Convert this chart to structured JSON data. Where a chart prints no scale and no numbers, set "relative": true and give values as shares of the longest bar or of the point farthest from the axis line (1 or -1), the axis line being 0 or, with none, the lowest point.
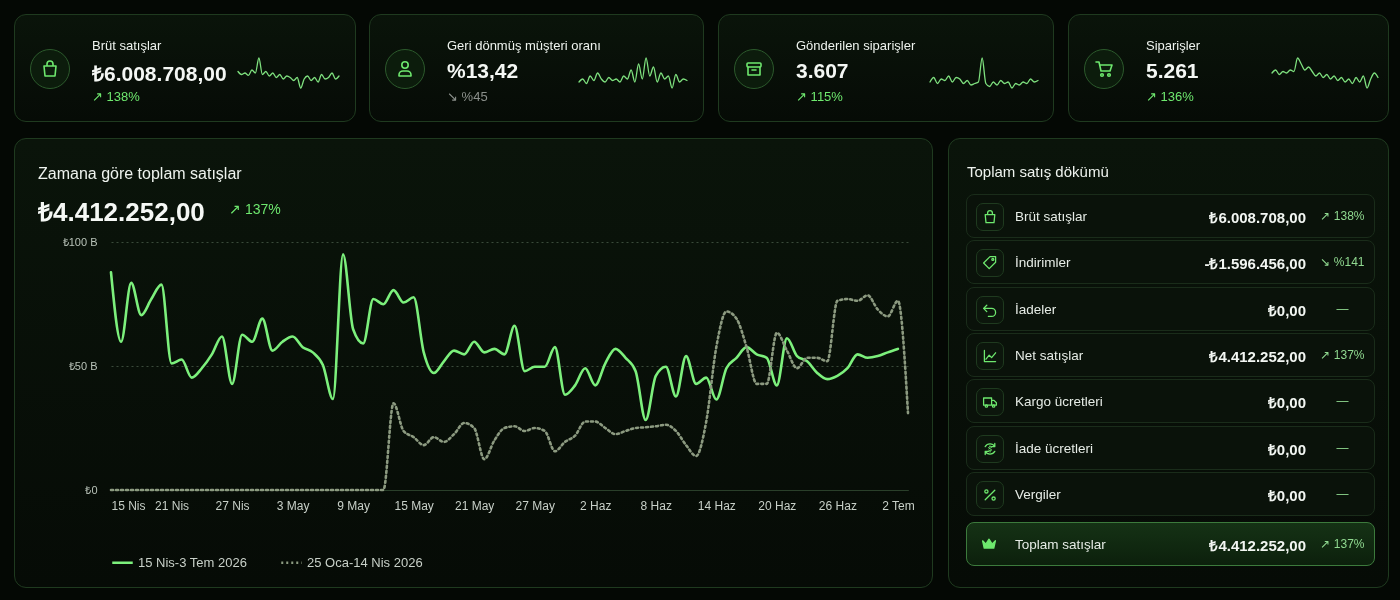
{
  "chart_data": [
    {
      "type": "other",
      "title": "Brüt satışlar",
      "subtitle": "₺6.008.708,00",
      "annotations": [
        "↗ 138%"
      ],
      "colors": [
        "#6ee86e"
      ]
    },
    {
      "type": "line",
      "relative": true,
      "tick_labels": false,
      "categories": [
        null,
        null,
        null,
        null,
        null,
        null,
        null,
        null,
        null,
        null,
        null,
        null,
        null,
        null,
        null,
        null,
        null,
        null,
        null,
        null,
        null,
        null,
        null,
        null,
        null,
        null,
        null,
        null,
        null,
        null
      ],
      "series": [
        {
          "color": "#7ee07e",
          "values": [
            0.55,
            0.45,
            0.5,
            0.42,
            0.6,
            0.5,
            1,
            0.45,
            0.55,
            0.4,
            0.5,
            0.35,
            0.45,
            0.3,
            0.4,
            0.35,
            0.25,
            0.35,
            0,
            0.3,
            0.4,
            0.25,
            0.35,
            0.2,
            0.45,
            0.3,
            0.35,
            0.5,
            0.3,
            0.4
          ]
        }
      ]
    },
    {
      "type": "other",
      "title": "Geri dönmüş müşteri oranı",
      "subtitle": "%13,42",
      "annotations": [
        "↘ %45"
      ],
      "colors": [
        "#8a8f8a"
      ]
    },
    {
      "type": "line",
      "relative": true,
      "tick_labels": false,
      "categories": [
        null,
        null,
        null,
        null,
        null,
        null,
        null,
        null,
        null,
        null,
        null,
        null,
        null,
        null,
        null,
        null,
        null,
        null,
        null,
        null,
        null,
        null,
        null,
        null,
        null,
        null,
        null,
        null,
        null,
        null
      ],
      "series": [
        {
          "color": "#7ee07e",
          "values": [
            0.2,
            0.3,
            0.15,
            0.4,
            0.25,
            0.5,
            0.3,
            0.2,
            0.35,
            0.25,
            0.3,
            0.2,
            0.4,
            0.3,
            0.6,
            0.2,
            0.8,
            0.3,
            1,
            0.4,
            0.7,
            0.2,
            0.5,
            0.3,
            0.4,
            0,
            0.45,
            0.2,
            0.3,
            0.25
          ]
        }
      ]
    },
    {
      "type": "other",
      "title": "Gönderilen siparişler",
      "subtitle": "3.607",
      "annotations": [
        "↗ 115%"
      ],
      "colors": [
        "#6ee86e"
      ]
    },
    {
      "type": "line",
      "relative": true,
      "tick_labels": false,
      "categories": [
        null,
        null,
        null,
        null,
        null,
        null,
        null,
        null,
        null,
        null,
        null,
        null,
        null,
        null,
        null,
        null,
        null,
        null,
        null,
        null,
        null,
        null,
        null,
        null,
        null,
        null,
        null,
        null,
        null,
        null
      ],
      "series": [
        {
          "color": "#7ee07e",
          "values": [
            0.2,
            0.35,
            0.15,
            0.3,
            0.25,
            0.4,
            0.2,
            0.35,
            0.3,
            0.15,
            0.25,
            0.1,
            0.15,
            0.2,
            1,
            0.15,
            0.05,
            0.2,
            0.1,
            0.25,
            0.15,
            0.2,
            0,
            0.15,
            0.1,
            0.2,
            0.15,
            0.3,
            0.2,
            0.25
          ]
        }
      ]
    },
    {
      "type": "other",
      "title": "Siparişler",
      "subtitle": "5.261",
      "annotations": [
        "↗ 136%"
      ],
      "colors": [
        "#6ee86e"
      ]
    },
    {
      "type": "line",
      "relative": true,
      "tick_labels": false,
      "categories": [
        null,
        null,
        null,
        null,
        null,
        null,
        null,
        null,
        null,
        null,
        null,
        null,
        null,
        null,
        null,
        null,
        null,
        null,
        null,
        null,
        null,
        null,
        null,
        null,
        null,
        null,
        null,
        null,
        null,
        null
      ],
      "series": [
        {
          "color": "#7ee07e",
          "values": [
            0.5,
            0.6,
            0.45,
            0.55,
            0.5,
            0.6,
            0.55,
            1,
            0.8,
            0.6,
            0.7,
            0.55,
            0.4,
            0.5,
            0.35,
            0.45,
            0.3,
            0.4,
            0.25,
            0.35,
            0.2,
            0.3,
            0.15,
            0.35,
            0.2,
            0.4,
            0,
            0.3,
            0.5,
            0.35
          ]
        }
      ]
    },
    {
      "type": "line",
      "title": "Zamana göre toplam satışlar",
      "subtitle": "₺4.412.252,00",
      "annotations": [
        "↗ 137%"
      ],
      "grid": "y",
      "legend": "bottom",
      "xlim": [
        "2026-04-15",
        "2026-07-03"
      ],
      "xticks": [
        {
          "value": "2026-04-15",
          "label": "15 Nis"
        },
        {
          "value": "2026-04-21",
          "label": "21 Nis"
        },
        {
          "value": "2026-04-27",
          "label": "27 Nis"
        },
        {
          "value": "2026-05-03",
          "label": "3 May"
        },
        {
          "value": "2026-05-09",
          "label": "9 May"
        },
        {
          "value": "2026-05-15",
          "label": "15 May"
        },
        {
          "value": "2026-05-21",
          "label": "21 May"
        },
        {
          "value": "2026-05-27",
          "label": "27 May"
        },
        {
          "value": "2026-06-02",
          "label": "2 Haz"
        },
        {
          "value": "2026-06-08",
          "label": "8 Haz"
        },
        {
          "value": "2026-06-14",
          "label": "14 Haz"
        },
        {
          "value": "2026-06-20",
          "label": "20 Haz"
        },
        {
          "value": "2026-06-26",
          "label": "26 Haz"
        },
        {
          "value": "2026-07-02",
          "label": "2 Tem"
        }
      ],
      "ylim": [
        0,
        100
      ],
      "yticks": [
        {
          "value": 0,
          "label": "₺0"
        },
        {
          "value": 50,
          "label": "₺50 B"
        },
        {
          "value": 100,
          "label": "₺100 B"
        }
      ],
      "x": [
        "2026-04-15",
        "2026-04-16",
        "2026-04-17",
        "2026-04-18",
        "2026-04-19",
        "2026-04-20",
        "2026-04-21",
        "2026-04-22",
        "2026-04-23",
        "2026-04-24",
        "2026-04-25",
        "2026-04-26",
        "2026-04-27",
        "2026-04-28",
        "2026-04-29",
        "2026-04-30",
        "2026-05-01",
        "2026-05-02",
        "2026-05-03",
        "2026-05-04",
        "2026-05-05",
        "2026-05-06",
        "2026-05-07",
        "2026-05-08",
        "2026-05-09",
        "2026-05-10",
        "2026-05-11",
        "2026-05-12",
        "2026-05-13",
        "2026-05-14",
        "2026-05-15",
        "2026-05-16",
        "2026-05-17",
        "2026-05-18",
        "2026-05-19",
        "2026-05-20",
        "2026-05-21",
        "2026-05-22",
        "2026-05-23",
        "2026-05-24",
        "2026-05-25",
        "2026-05-26",
        "2026-05-27",
        "2026-05-28",
        "2026-05-29",
        "2026-05-30",
        "2026-05-31",
        "2026-06-01",
        "2026-06-02",
        "2026-06-03",
        "2026-06-04",
        "2026-06-05",
        "2026-06-06",
        "2026-06-07",
        "2026-06-08",
        "2026-06-09",
        "2026-06-10",
        "2026-06-11",
        "2026-06-12",
        "2026-06-13",
        "2026-06-14",
        "2026-06-15",
        "2026-06-16",
        "2026-06-17",
        "2026-06-18",
        "2026-06-19",
        "2026-06-20",
        "2026-06-21",
        "2026-06-22",
        "2026-06-23",
        "2026-06-24",
        "2026-06-25",
        "2026-06-26",
        "2026-06-27",
        "2026-06-28",
        "2026-06-29",
        "2026-06-30",
        "2026-07-01",
        "2026-07-02"
      ],
      "series": [
        {
          "name": "15 Nis-3 Tem 2026",
          "color": "#7cf07c",
          "line_style": "solid",
          "values": [
            87.8,
            59.8,
            83.5,
            70.5,
            77,
            82.8,
            51,
            52.6,
            45.3,
            49.1,
            54.7,
            61.9,
            42.8,
            62.6,
            59.8,
            69.1,
            56.2,
            59.8,
            61.9,
            57.6,
            55.5,
            50.4,
            36.7,
            95,
            64.8,
            59.1,
            77,
            74.9,
            80.6,
            75.6,
            77.7,
            55.5,
            47.2,
            51.9,
            56.2,
            54.7,
            59.8,
            55.5,
            56.9,
            54.7,
            66.2,
            47.9,
            49.7,
            49.7,
            57.6,
            38.4,
            42.2,
            49.1,
            42.2,
            51.1,
            56.9,
            53.3,
            47.9,
            28.2,
            46,
            49.7,
            37.7,
            54,
            42.8,
            45.3,
            36.5,
            49.1,
            53.3,
            57.6,
            54.7,
            53.3,
            42.2,
            61.2,
            54,
            51.9,
            47.2,
            44.7,
            46,
            49.1,
            54.7,
            53.3,
            54,
            55.5,
            56.9
          ]
        },
        {
          "name": "25 Oca-14 Nis 2026",
          "color": "#8c9a80",
          "line_style": "dotted",
          "x": [
            "2026-04-15",
            "2026-04-16",
            "2026-04-17",
            "2026-04-18",
            "2026-04-19",
            "2026-04-20",
            "2026-04-21",
            "2026-04-22",
            "2026-04-23",
            "2026-04-24",
            "2026-04-25",
            "2026-04-26",
            "2026-04-27",
            "2026-04-28",
            "2026-04-29",
            "2026-04-30",
            "2026-05-01",
            "2026-05-02",
            "2026-05-03",
            "2026-05-04",
            "2026-05-05",
            "2026-05-06",
            "2026-05-07",
            "2026-05-08",
            "2026-05-09",
            "2026-05-10",
            "2026-05-11",
            "2026-05-12",
            "2026-05-13",
            "2026-05-14",
            "2026-05-15",
            "2026-05-16",
            "2026-05-17",
            "2026-05-18",
            "2026-05-19",
            "2026-05-20",
            "2026-05-21",
            "2026-05-22",
            "2026-05-23",
            "2026-05-24",
            "2026-05-25",
            "2026-05-26",
            "2026-05-27",
            "2026-05-28",
            "2026-05-29",
            "2026-05-30",
            "2026-05-31",
            "2026-06-01",
            "2026-06-02",
            "2026-06-03",
            "2026-06-04",
            "2026-06-05",
            "2026-06-06",
            "2026-06-07",
            "2026-06-08",
            "2026-06-09",
            "2026-06-10",
            "2026-06-11",
            "2026-06-12",
            "2026-06-13",
            "2026-06-14",
            "2026-06-15",
            "2026-06-16",
            "2026-06-17",
            "2026-06-18",
            "2026-06-19",
            "2026-06-20",
            "2026-06-21",
            "2026-06-22",
            "2026-06-23",
            "2026-06-24",
            "2026-06-25",
            "2026-06-26",
            "2026-06-27",
            "2026-06-28",
            "2026-06-29",
            "2026-06-30",
            "2026-07-01",
            "2026-07-02",
            "2026-07-03"
          ],
          "values": [
            0,
            0,
            0,
            0,
            0,
            0,
            0,
            0,
            0,
            0,
            0,
            0,
            0,
            0,
            0,
            0,
            0,
            0,
            0,
            0,
            0,
            0,
            0,
            0,
            0,
            0,
            0,
            0,
            35,
            23.8,
            21.3,
            18.1,
            21.3,
            19.4,
            22.5,
            27,
            25,
            12.4,
            20,
            25,
            25.7,
            23.8,
            25,
            23.8,
            15.6,
            19.4,
            21.9,
            27.6,
            27.6,
            25,
            22.5,
            23.8,
            25,
            25.3,
            25.7,
            26.3,
            23.8,
            18.1,
            13.7,
            27.6,
            57.6,
            72,
            69.1,
            57.6,
            42.8,
            42.8,
            63.4,
            56.2,
            49.1,
            53.3,
            53.3,
            51.9,
            76.3,
            77,
            76.3,
            78.5,
            72.8,
            70,
            76.3,
            31
          ]
        }
      ]
    },
    {
      "type": "other",
      "title": "Toplam satış dökümü",
      "categories": [
        "Brüt satışlar",
        "İndirimler",
        "İadeler",
        "Net satışlar",
        "Kargo ücretleri",
        "İade ücretleri",
        "Vergiler",
        "Toplam satışlar"
      ],
      "value_labels": [
        "₺6.008.708,00",
        "-₺1.596.456,00",
        "₺0,00",
        "₺4.412.252,00",
        "₺0,00",
        "₺0,00",
        "₺0,00",
        "₺4.412.252,00"
      ],
      "annotations": [
        "↗ 138%",
        "↘ %141",
        "—",
        "↗ 137%",
        "—",
        "—",
        "—",
        "↗ 137%"
      ]
    }
  ]
}
